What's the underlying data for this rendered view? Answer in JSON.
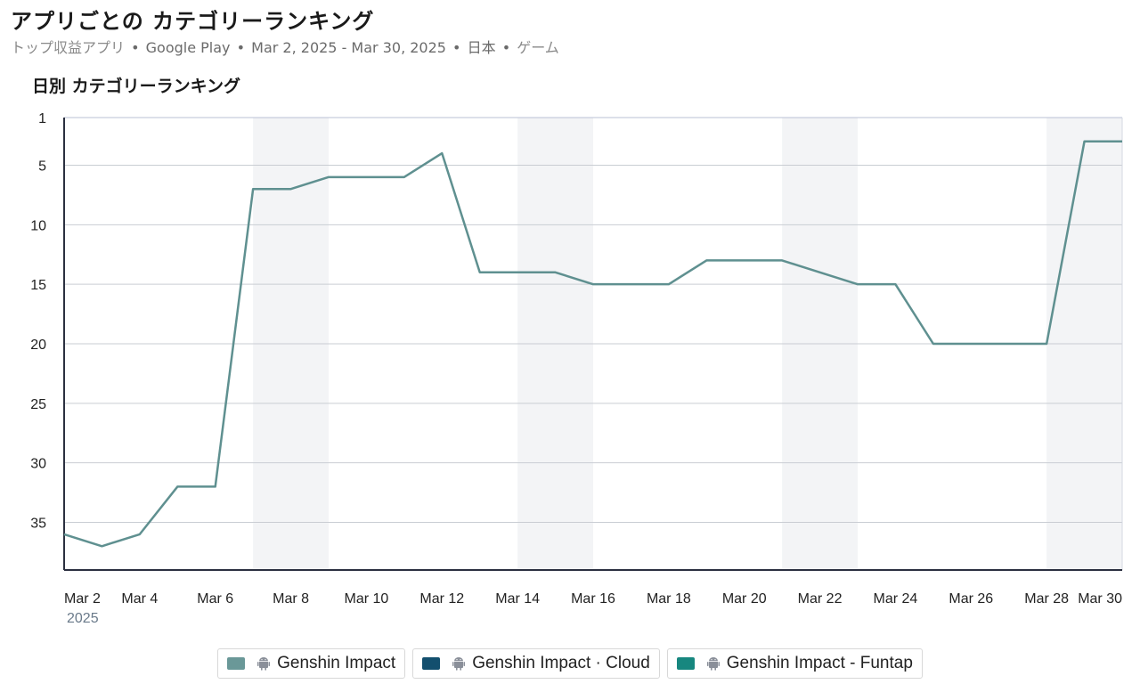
{
  "header": {
    "title": "アプリごとの カテゴリーランキング",
    "subtitle_metric": "トップ収益アプリ",
    "subtitle_store": "Google Play",
    "subtitle_range": "Mar 2, 2025 - Mar 30, 2025",
    "subtitle_country": "日本",
    "subtitle_category": "ゲーム",
    "separator": "•"
  },
  "chart_data": {
    "type": "line",
    "title": "日別 カテゴリーランキング",
    "xlabel": "",
    "ylabel": "",
    "y_inverted": true,
    "ylim": [
      1,
      39
    ],
    "y_ticks": [
      1,
      5,
      10,
      15,
      20,
      25,
      30,
      35
    ],
    "x_ticks": [
      "Mar 2",
      "Mar 4",
      "Mar 6",
      "Mar 8",
      "Mar 10",
      "Mar 12",
      "Mar 14",
      "Mar 16",
      "Mar 18",
      "Mar 20",
      "Mar 22",
      "Mar 24",
      "Mar 26",
      "Mar 28",
      "Mar 30"
    ],
    "x_year_label": "2025",
    "grid": true,
    "weekend_shading": true,
    "legend_placement": "bottom-center",
    "dates": [
      "Mar 2",
      "Mar 3",
      "Mar 4",
      "Mar 5",
      "Mar 6",
      "Mar 7",
      "Mar 8",
      "Mar 9",
      "Mar 10",
      "Mar 11",
      "Mar 12",
      "Mar 13",
      "Mar 14",
      "Mar 15",
      "Mar 16",
      "Mar 17",
      "Mar 18",
      "Mar 19",
      "Mar 20",
      "Mar 21",
      "Mar 22",
      "Mar 23",
      "Mar 24",
      "Mar 25",
      "Mar 26",
      "Mar 27",
      "Mar 28",
      "Mar 29",
      "Mar 30"
    ],
    "series": [
      {
        "name": "Genshin Impact",
        "color": "#5f9090",
        "values": [
          36,
          37,
          36,
          32,
          32,
          7,
          7,
          6,
          6,
          6,
          4,
          14,
          14,
          14,
          15,
          15,
          15,
          13,
          13,
          13,
          14,
          15,
          15,
          20,
          20,
          20,
          20,
          3,
          3
        ]
      }
    ]
  },
  "legend": [
    {
      "label": "Genshin Impact",
      "color": "#6a9898",
      "icon": "android-icon"
    },
    {
      "label": "Genshin Impact · Cloud",
      "color": "#134f6e",
      "icon": "android-icon"
    },
    {
      "label": "Genshin Impact - Funtap",
      "color": "#17877f",
      "icon": "android-icon"
    }
  ]
}
